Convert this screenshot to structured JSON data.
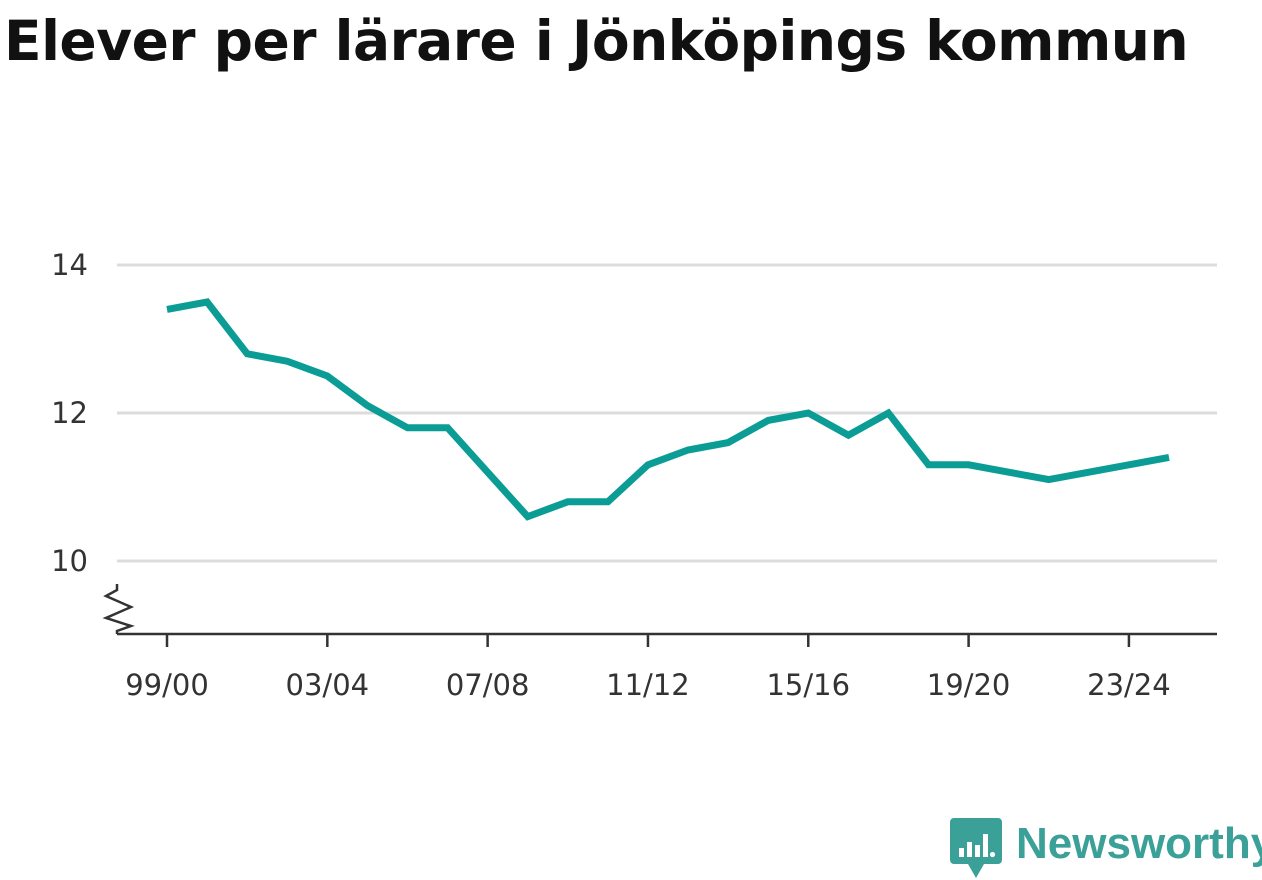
{
  "title": "Elever per lärare i Jönköpings kommun",
  "brand": {
    "name": "Newsworthy",
    "color": "#3aa098"
  },
  "chart_data": {
    "type": "line",
    "line_color": "#0b9d95",
    "grid": true,
    "y_axis_break": true,
    "ylim": [
      9,
      14
    ],
    "yticks": [
      10,
      12,
      14
    ],
    "tick_labels_x": [
      "99/00",
      "03/04",
      "07/08",
      "11/12",
      "15/16",
      "19/20",
      "23/24"
    ],
    "series": [
      {
        "x": [
          "99/00",
          "00/01",
          "01/02",
          "02/03",
          "03/04",
          "04/05",
          "05/06",
          "06/07",
          "07/08",
          "08/09",
          "09/10",
          "10/11",
          "11/12",
          "12/13",
          "13/14",
          "14/15",
          "15/16",
          "16/17",
          "17/18",
          "18/19",
          "19/20",
          "20/21",
          "21/22",
          "22/23",
          "23/24",
          "24/25"
        ],
        "values": [
          13.4,
          13.5,
          12.8,
          12.7,
          12.5,
          12.1,
          11.8,
          11.8,
          11.2,
          10.6,
          10.8,
          10.8,
          11.3,
          11.5,
          11.6,
          11.9,
          12.0,
          11.7,
          12.0,
          11.3,
          11.3,
          11.2,
          11.1,
          11.2,
          11.3,
          11.4
        ]
      }
    ]
  }
}
